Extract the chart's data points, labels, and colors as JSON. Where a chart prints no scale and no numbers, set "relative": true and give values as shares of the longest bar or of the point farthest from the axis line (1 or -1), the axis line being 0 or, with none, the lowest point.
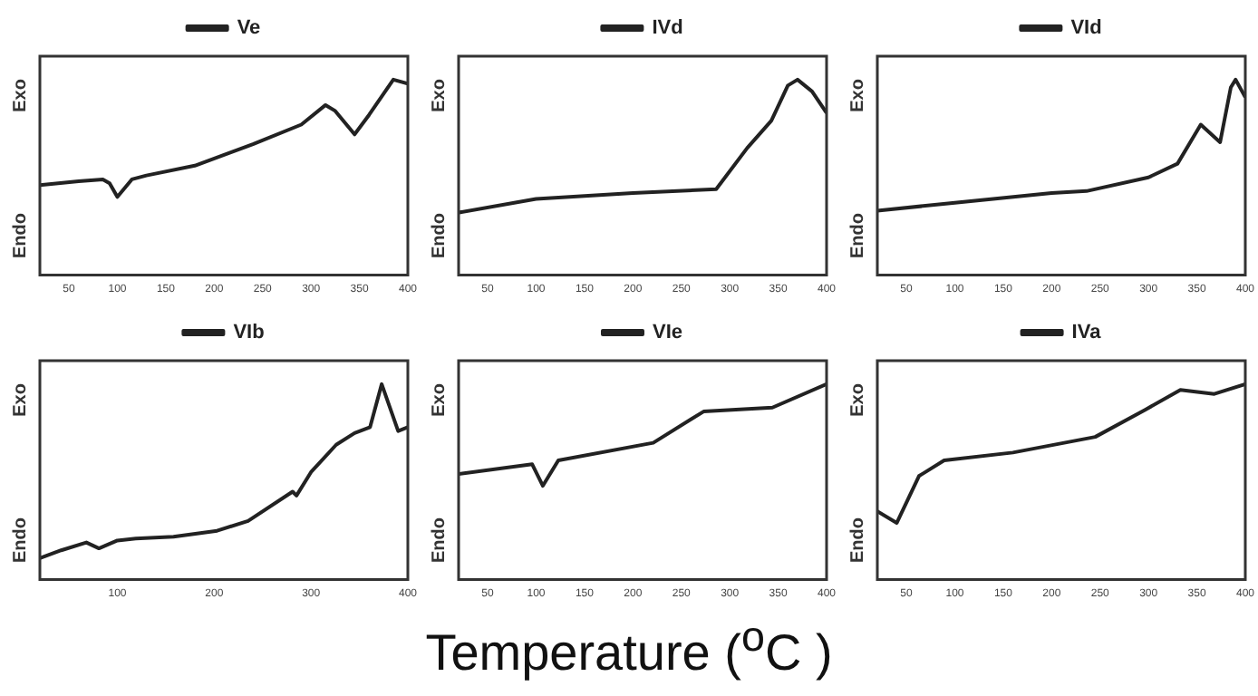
{
  "chart_data": [
    {
      "type": "line",
      "relative": true,
      "annotations": [
        "Exo",
        "Endo"
      ],
      "xlim": [
        20,
        400
      ],
      "xticks": [
        50,
        100,
        150,
        200,
        250,
        300,
        350,
        400
      ],
      "legend": "top",
      "grid": false,
      "marker": "none",
      "series": [
        {
          "name": "Ve",
          "color": "#222222",
          "x": [
            20,
            60,
            85,
            92,
            100,
            115,
            130,
            180,
            240,
            290,
            315,
            325,
            345,
            360,
            385,
            400
          ],
          "values": [
            0.46,
            0.48,
            0.49,
            0.47,
            0.4,
            0.49,
            0.51,
            0.56,
            0.67,
            0.77,
            0.87,
            0.84,
            0.72,
            0.82,
            1.0,
            0.98
          ]
        }
      ]
    },
    {
      "type": "line",
      "relative": true,
      "annotations": [
        "Exo",
        "Endo"
      ],
      "xlim": [
        20,
        400
      ],
      "xticks": [
        50,
        100,
        150,
        200,
        250,
        300,
        350,
        400
      ],
      "legend": "top",
      "grid": false,
      "marker": "none",
      "series": [
        {
          "name": "IVd",
          "color": "#222222",
          "x": [
            20,
            100,
            200,
            286,
            318,
            343,
            360,
            370,
            385,
            400
          ],
          "values": [
            0.32,
            0.39,
            0.42,
            0.44,
            0.65,
            0.79,
            0.97,
            1.0,
            0.94,
            0.83
          ]
        }
      ]
    },
    {
      "type": "line",
      "relative": true,
      "annotations": [
        "Exo",
        "Endo"
      ],
      "xlim": [
        20,
        400
      ],
      "xticks": [
        50,
        100,
        150,
        200,
        250,
        300,
        350,
        400
      ],
      "legend": "top",
      "grid": false,
      "marker": "none",
      "series": [
        {
          "name": "VId",
          "color": "#222222",
          "x": [
            20,
            100,
            200,
            236,
            300,
            330,
            354,
            374,
            385,
            390,
            400
          ],
          "values": [
            0.33,
            0.37,
            0.42,
            0.43,
            0.5,
            0.57,
            0.77,
            0.68,
            0.96,
            1.0,
            0.91
          ]
        }
      ]
    },
    {
      "type": "line",
      "relative": true,
      "annotations": [
        "Exo",
        "Endo"
      ],
      "xlim": [
        20,
        400
      ],
      "xticks": [
        100,
        200,
        300,
        400
      ],
      "legend": "top",
      "grid": false,
      "marker": "none",
      "series": [
        {
          "name": "VIb",
          "color": "#222222",
          "x": [
            20,
            42,
            68,
            81,
            100,
            119,
            158,
            203,
            235,
            281,
            285,
            300,
            326,
            345,
            361,
            373,
            390,
            400
          ],
          "values": [
            0.11,
            0.15,
            0.19,
            0.16,
            0.2,
            0.21,
            0.22,
            0.25,
            0.3,
            0.45,
            0.43,
            0.55,
            0.69,
            0.75,
            0.78,
            1.0,
            0.76,
            0.78
          ]
        }
      ]
    },
    {
      "type": "line",
      "relative": true,
      "annotations": [
        "Exo",
        "Endo"
      ],
      "xlabel": "Temperature ($^{o}$C )",
      "xlim": [
        20,
        400
      ],
      "xticks": [
        50,
        100,
        150,
        200,
        250,
        300,
        350,
        400
      ],
      "legend": "top",
      "grid": false,
      "marker": "none",
      "series": [
        {
          "name": "VIe",
          "color": "#222222",
          "x": [
            20,
            96,
            107,
            123,
            221,
            273,
            344,
            400
          ],
          "values": [
            0.54,
            0.59,
            0.48,
            0.61,
            0.7,
            0.86,
            0.88,
            1.0
          ]
        }
      ]
    },
    {
      "type": "line",
      "relative": true,
      "annotations": [
        "Exo",
        "Endo"
      ],
      "xlim": [
        20,
        400
      ],
      "xticks": [
        50,
        100,
        150,
        200,
        250,
        300,
        350,
        400
      ],
      "legend": "top",
      "grid": false,
      "marker": "none",
      "series": [
        {
          "name": "IVa",
          "color": "#222222",
          "x": [
            20,
            40,
            63,
            89,
            160,
            245,
            297,
            333,
            368,
            400
          ],
          "values": [
            0.35,
            0.29,
            0.53,
            0.61,
            0.65,
            0.73,
            0.87,
            0.97,
            0.95,
            1.0
          ]
        }
      ]
    }
  ]
}
